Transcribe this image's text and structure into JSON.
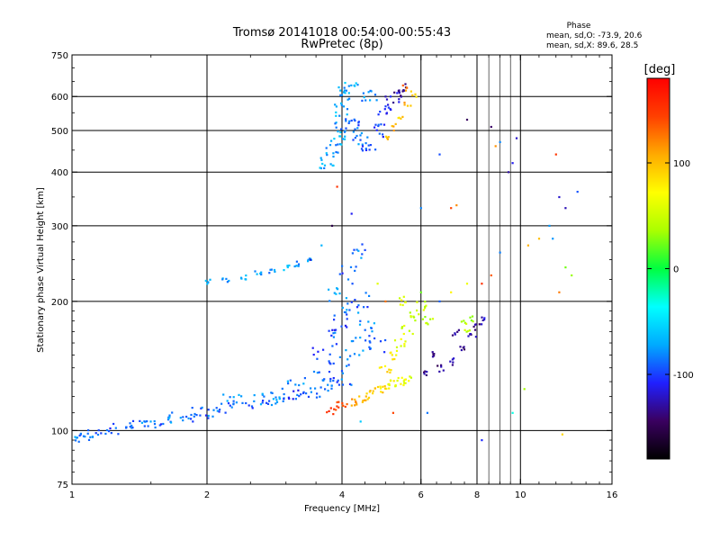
{
  "chart_data": {
    "type": "scatter",
    "title": "Tromsø 20141018 00:54:00-00:55:43",
    "subtitle": "RwPretec (8p)",
    "phase_stats": {
      "heading": "Phase",
      "line_o": "mean, sd,O: -73.9, 20.6",
      "line_x": "mean, sd,X:  89.6, 28.5"
    },
    "xlabel": "Frequency [MHz]",
    "ylabel": "Stationary phase Virtual Height [km]",
    "x_scale": "log",
    "y_scale": "log",
    "xlim": [
      1,
      16
    ],
    "ylim": [
      75,
      750
    ],
    "x_ticks": [
      1,
      2,
      4,
      6,
      8,
      10,
      16
    ],
    "x_gridlines": [
      2,
      4,
      6,
      8,
      10
    ],
    "x_minor_gridlines": [
      8.5,
      9,
      9.5
    ],
    "y_ticks": [
      75,
      100,
      200,
      300,
      400,
      500,
      600,
      750
    ],
    "y_gridlines": [
      100,
      200,
      300,
      400,
      500,
      600
    ],
    "grid": true,
    "colorbar": {
      "label": "[deg]",
      "range": [
        -180,
        180
      ],
      "ticks": [
        100,
        0,
        -100
      ],
      "colormap": [
        "#000000",
        "#3a0060",
        "#2020ff",
        "#00aaff",
        "#00ffff",
        "#00ff40",
        "#aaff00",
        "#ffff00",
        "#ffaa00",
        "#ff4000",
        "#ff0000"
      ]
    },
    "groups": [
      {
        "name": "o-trace-lower",
        "points": [
          [
            1.0,
            96,
            -90
          ],
          [
            1.05,
            97,
            -80
          ],
          [
            1.1,
            99,
            -85
          ],
          [
            1.2,
            100,
            -95
          ],
          [
            1.3,
            101,
            -88
          ],
          [
            1.4,
            103,
            -92
          ],
          [
            1.5,
            104,
            -85
          ],
          [
            1.6,
            106,
            -95
          ],
          [
            1.7,
            107,
            -80
          ],
          [
            1.8,
            108,
            -90
          ],
          [
            1.9,
            110,
            -98
          ],
          [
            2.0,
            111,
            -85
          ],
          [
            2.2,
            113,
            -92
          ],
          [
            2.4,
            115,
            -88
          ],
          [
            2.6,
            116,
            -95
          ],
          [
            2.8,
            118,
            -82
          ],
          [
            3.0,
            119,
            -90
          ],
          [
            3.2,
            121,
            -100
          ],
          [
            3.4,
            123,
            -85
          ],
          [
            3.6,
            125,
            -92
          ],
          [
            3.8,
            128,
            -88
          ],
          [
            4.0,
            130,
            -95
          ],
          [
            2.3,
            118,
            -75
          ],
          [
            2.7,
            122,
            -70
          ],
          [
            3.1,
            128,
            -80
          ],
          [
            3.5,
            134,
            -85
          ],
          [
            3.9,
            140,
            -90
          ],
          [
            4.2,
            150,
            -80
          ],
          [
            4.4,
            160,
            -85
          ]
        ],
        "spread": [
          0.06,
          0.03
        ],
        "copies": 7
      },
      {
        "name": "o-trace-upper-band",
        "points": [
          [
            2.0,
            222,
            -75
          ],
          [
            2.2,
            225,
            -80
          ],
          [
            2.4,
            228,
            -70
          ],
          [
            2.6,
            232,
            -75
          ],
          [
            2.8,
            236,
            -80
          ],
          [
            3.0,
            240,
            -72
          ],
          [
            3.2,
            245,
            -78
          ],
          [
            3.4,
            250,
            -70
          ]
        ],
        "spread": [
          0.02,
          0.015
        ],
        "copies": 5
      },
      {
        "name": "o-trace-mid",
        "points": [
          [
            3.6,
            150,
            -95
          ],
          [
            3.8,
            165,
            -90
          ],
          [
            4.0,
            180,
            -100
          ],
          [
            4.2,
            190,
            -85
          ],
          [
            4.4,
            200,
            -95
          ],
          [
            4.6,
            175,
            -80
          ],
          [
            4.8,
            160,
            -90
          ],
          [
            4.1,
            230,
            -95
          ],
          [
            4.3,
            260,
            -85
          ],
          [
            3.9,
            210,
            -75
          ]
        ],
        "spread": [
          0.05,
          0.05
        ],
        "copies": 8
      },
      {
        "name": "x-trace",
        "points": [
          [
            3.8,
            112,
            150
          ],
          [
            4.0,
            114,
            140
          ],
          [
            4.2,
            116,
            120
          ],
          [
            4.4,
            118,
            110
          ],
          [
            4.6,
            121,
            100
          ],
          [
            4.8,
            124,
            90
          ],
          [
            5.0,
            126,
            80
          ],
          [
            5.2,
            128,
            70
          ],
          [
            5.4,
            130,
            65
          ],
          [
            5.6,
            132,
            60
          ],
          [
            5.0,
            140,
            85
          ],
          [
            5.2,
            150,
            75
          ],
          [
            5.4,
            160,
            65
          ],
          [
            5.6,
            172,
            55
          ],
          [
            5.8,
            185,
            50
          ],
          [
            6.0,
            195,
            45
          ],
          [
            6.2,
            180,
            40
          ],
          [
            5.5,
            200,
            60
          ]
        ],
        "spread": [
          0.03,
          0.025
        ],
        "copies": 7
      },
      {
        "name": "x-trace-purple",
        "points": [
          [
            6.2,
            135,
            -130
          ],
          [
            6.6,
            140,
            -135
          ],
          [
            7.0,
            145,
            -125
          ],
          [
            7.4,
            155,
            -140
          ],
          [
            7.8,
            165,
            -130
          ],
          [
            8.0,
            175,
            -135
          ],
          [
            8.2,
            180,
            -125
          ],
          [
            6.4,
            150,
            -140
          ],
          [
            7.2,
            170,
            -130
          ]
        ],
        "spread": [
          0.02,
          0.02
        ],
        "copies": 5
      },
      {
        "name": "x-trace-green",
        "points": [
          [
            7.5,
            178,
            40
          ],
          [
            7.8,
            182,
            35
          ],
          [
            7.6,
            172,
            45
          ]
        ],
        "spread": [
          0.015,
          0.015
        ],
        "copies": 4
      },
      {
        "name": "f2-cluster",
        "points": [
          [
            3.7,
            420,
            -70
          ],
          [
            3.8,
            450,
            -75
          ],
          [
            3.9,
            480,
            -65
          ],
          [
            4.0,
            510,
            -80
          ],
          [
            4.0,
            560,
            -70
          ],
          [
            4.0,
            610,
            -75
          ],
          [
            4.2,
            520,
            -90
          ],
          [
            4.4,
            480,
            -85
          ],
          [
            4.6,
            460,
            -95
          ],
          [
            4.8,
            500,
            -100
          ],
          [
            5.0,
            560,
            -110
          ],
          [
            5.2,
            600,
            -120
          ],
          [
            5.4,
            620,
            -130
          ],
          [
            4.6,
            600,
            -80
          ],
          [
            4.2,
            630,
            -70
          ]
        ],
        "spread": [
          0.04,
          0.035
        ],
        "copies": 10
      },
      {
        "name": "f2-cluster-x",
        "points": [
          [
            5.0,
            480,
            100
          ],
          [
            5.2,
            510,
            110
          ],
          [
            5.4,
            540,
            95
          ],
          [
            5.6,
            580,
            105
          ],
          [
            5.8,
            610,
            90
          ],
          [
            5.5,
            630,
            120
          ]
        ],
        "spread": [
          0.02,
          0.02
        ],
        "copies": 4
      },
      {
        "name": "scatter",
        "points": [
          [
            7.6,
            530,
            -140
          ],
          [
            8.6,
            510,
            -130
          ],
          [
            9.0,
            470,
            -90
          ],
          [
            9.6,
            420,
            -120
          ],
          [
            9.8,
            480,
            -110
          ],
          [
            9.4,
            400,
            -140
          ],
          [
            6.6,
            440,
            -100
          ],
          [
            7.0,
            330,
            140
          ],
          [
            7.2,
            335,
            130
          ],
          [
            6.0,
            330,
            -90
          ],
          [
            8.8,
            460,
            120
          ],
          [
            12.0,
            440,
            150
          ],
          [
            12.2,
            350,
            -120
          ],
          [
            12.6,
            330,
            -110
          ],
          [
            11.6,
            300,
            -80
          ],
          [
            11.8,
            280,
            -90
          ],
          [
            13.4,
            360,
            -80
          ],
          [
            12.6,
            240,
            20
          ],
          [
            13.0,
            230,
            30
          ],
          [
            12.2,
            210,
            120
          ],
          [
            11.0,
            280,
            110
          ],
          [
            10.4,
            270,
            90
          ],
          [
            9.0,
            260,
            -90
          ],
          [
            8.6,
            230,
            130
          ],
          [
            8.2,
            220,
            140
          ],
          [
            7.6,
            220,
            60
          ],
          [
            7.0,
            210,
            70
          ],
          [
            6.6,
            200,
            -100
          ],
          [
            6.0,
            210,
            30
          ],
          [
            8.2,
            95,
            -120
          ],
          [
            9.6,
            110,
            -20
          ],
          [
            5.2,
            110,
            150
          ],
          [
            4.4,
            105,
            -60
          ],
          [
            10.2,
            125,
            40
          ],
          [
            12.4,
            98,
            90
          ],
          [
            6.2,
            110,
            -100
          ],
          [
            4.8,
            220,
            50
          ],
          [
            5.0,
            200,
            140
          ],
          [
            3.8,
            300,
            -140
          ],
          [
            3.9,
            370,
            160
          ],
          [
            4.2,
            320,
            -120
          ],
          [
            3.6,
            270,
            -80
          ],
          [
            3.4,
            250,
            -110
          ]
        ],
        "spread": [
          0.0,
          0.0
        ],
        "copies": 1
      }
    ]
  }
}
